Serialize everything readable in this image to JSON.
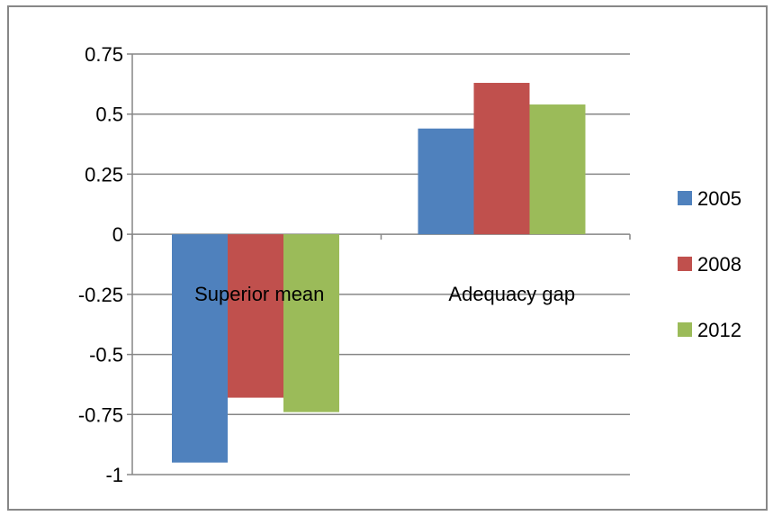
{
  "chart_data": {
    "type": "bar",
    "categories": [
      "Superior mean",
      "Adequacy gap"
    ],
    "series": [
      {
        "name": "2005",
        "values": [
          -0.95,
          0.44
        ],
        "color": "#4F81BD"
      },
      {
        "name": "2008",
        "values": [
          -0.68,
          0.63
        ],
        "color": "#C0504D"
      },
      {
        "name": "2012",
        "values": [
          -0.74,
          0.54
        ],
        "color": "#9BBB59"
      }
    ],
    "yticks": [
      "0.75",
      "0.5",
      "0.25",
      "0",
      "-0.25",
      "-0.5",
      "-0.75",
      "-1"
    ],
    "ylim": [
      -1,
      0.75
    ],
    "grid": true,
    "legend_position": "right",
    "title": "",
    "xlabel": "",
    "ylabel": ""
  }
}
